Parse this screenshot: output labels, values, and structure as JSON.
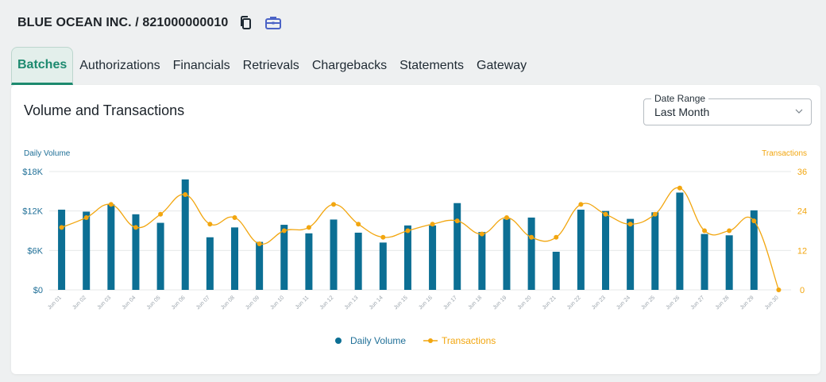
{
  "header": {
    "merchant_title": "BLUE OCEAN INC. / 821000000010",
    "copy_icon": "copy-icon",
    "business_icon": "briefcase-icon"
  },
  "tabs": [
    {
      "label": "Batches",
      "active": true
    },
    {
      "label": "Authorizations",
      "active": false
    },
    {
      "label": "Financials",
      "active": false
    },
    {
      "label": "Retrievals",
      "active": false
    },
    {
      "label": "Chargebacks",
      "active": false
    },
    {
      "label": "Statements",
      "active": false
    },
    {
      "label": "Gateway",
      "active": false
    }
  ],
  "card": {
    "title": "Volume and Transactions",
    "date_range": {
      "label": "Date Range",
      "value": "Last Month"
    }
  },
  "colors": {
    "volume": "#0c6f94",
    "transactions": "#f2a60f",
    "active_tab": "#1d8a6f",
    "axis_text": "#1f6f97"
  },
  "chart_data": {
    "type": "bar",
    "categories": [
      "Jun 01",
      "Jun 02",
      "Jun 03",
      "Jun 04",
      "Jun 05",
      "Jun 06",
      "Jun 07",
      "Jun 08",
      "Jun 09",
      "Jun 10",
      "Jun 11",
      "Jun 12",
      "Jun 13",
      "Jun 14",
      "Jun 15",
      "Jun 16",
      "Jun 17",
      "Jun 18",
      "Jun 19",
      "Jun 20",
      "Jun 21",
      "Jun 22",
      "Jun 23",
      "Jun 24",
      "Jun 25",
      "Jun 26",
      "Jun 27",
      "Jun 28",
      "Jun 29",
      "Jun 30"
    ],
    "series": [
      {
        "name": "Daily Volume",
        "type": "bar",
        "axis": "left",
        "values": [
          12200,
          11900,
          13000,
          11500,
          10200,
          16800,
          8000,
          9500,
          7300,
          9900,
          8600,
          10700,
          8700,
          7200,
          9800,
          9800,
          13200,
          8800,
          10800,
          11000,
          5800,
          12200,
          12000,
          10800,
          11800,
          14800,
          8500,
          8300,
          12100,
          0
        ]
      },
      {
        "name": "Transactions",
        "type": "line",
        "axis": "right",
        "values": [
          19,
          22,
          26,
          19,
          23,
          29,
          20,
          22,
          14,
          18,
          19,
          26,
          20,
          16,
          18,
          20,
          21,
          17,
          22,
          16,
          16,
          26,
          23,
          20,
          23,
          31,
          18,
          18,
          21,
          0
        ]
      }
    ],
    "ylabel_left": "Daily Volume",
    "ylabel_right": "Transactions",
    "yticks_left": [
      "$0",
      "$6K",
      "$12K",
      "$18K"
    ],
    "yticks_right": [
      "0",
      "12",
      "24",
      "36"
    ],
    "ylim_left": [
      0,
      18000
    ],
    "ylim_right": [
      0,
      36
    ],
    "grid": true,
    "legend": "bottom"
  }
}
